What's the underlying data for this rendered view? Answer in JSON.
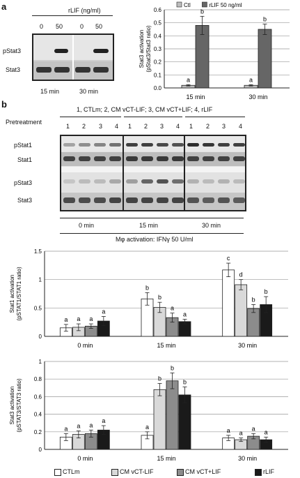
{
  "panel_a": {
    "letter": "a",
    "blot": {
      "header": "rLIF (ng/ml)",
      "dose_labels": [
        "0",
        "50",
        "0",
        "50"
      ],
      "row_labels": [
        "pStat3",
        "Stat3"
      ],
      "time_labels": [
        "15 min",
        "30 min"
      ]
    }
  },
  "panel_b": {
    "letter": "b",
    "legend_line": "1, CTLm; 2, CM vCT-LIF; 3, CM vCT+LIF; 4, rLIF",
    "pretreatment_label": "Pretreatment",
    "lane_numbers": [
      "1",
      "2",
      "3",
      "4",
      "1",
      "2",
      "3",
      "4",
      "1",
      "2",
      "3",
      "4"
    ],
    "row_labels": [
      "pStat1",
      "Stat1",
      "pStat3",
      "Stat3"
    ],
    "time_labels": [
      "0 min",
      "15 min",
      "30 min"
    ],
    "activation_label": "Mφ activation: IFNγ 50 U/ml"
  },
  "legend": {
    "items": [
      {
        "label": "CTLm",
        "color": "#ffffff"
      },
      {
        "label": "CM vCT-LIF",
        "color": "#d9d9d9"
      },
      {
        "label": "CM vCT+LIF",
        "color": "#8c8c8c"
      },
      {
        "label": "rLIF",
        "color": "#1a1a1a"
      }
    ]
  },
  "chart_data": [
    {
      "type": "bar",
      "ylabel": "Stat3 activation\n(pStat3/Stat3 ratio)",
      "ylim": [
        0,
        0.6
      ],
      "yticks": [
        "0.0",
        "0.1",
        "0.2",
        "0.3",
        "0.4",
        "0.5",
        "0.6"
      ],
      "categories": [
        "15 min",
        "30 min"
      ],
      "grid": true,
      "legend_position": "top",
      "series": [
        {
          "name": "Ctl",
          "color": "#bdbdbd",
          "values": [
            0.02,
            0.02
          ],
          "errors": [
            0.005,
            0.005
          ],
          "letters": [
            "a",
            "a"
          ]
        },
        {
          "name": "rLIF 50 ng/ml",
          "color": "#666666",
          "values": [
            0.48,
            0.45
          ],
          "errors": [
            0.07,
            0.04
          ],
          "letters": [
            "b",
            "b"
          ]
        }
      ]
    },
    {
      "type": "bar",
      "ylabel": "Stat1 activation\n(pSTAT1/STAT1 ratio)",
      "ylim": [
        0,
        1.5
      ],
      "yticks": [
        "0",
        "0.5",
        "1",
        "1.5"
      ],
      "categories": [
        "0 min",
        "15 min",
        "30 min"
      ],
      "grid": true,
      "series": [
        {
          "name": "CTLm",
          "color": "#ffffff",
          "values": [
            0.15,
            0.66,
            1.17
          ],
          "errors": [
            0.06,
            0.11,
            0.12
          ],
          "letters": [
            "a",
            "b",
            "c"
          ]
        },
        {
          "name": "CM vCT-LIF",
          "color": "#d9d9d9",
          "values": [
            0.16,
            0.51,
            0.91
          ],
          "errors": [
            0.06,
            0.09,
            0.09
          ],
          "letters": [
            "a",
            "b",
            "d"
          ]
        },
        {
          "name": "CM vCT+LIF",
          "color": "#8c8c8c",
          "values": [
            0.18,
            0.33,
            0.49
          ],
          "errors": [
            0.04,
            0.08,
            0.07
          ],
          "letters": [
            "a",
            "a",
            "b"
          ]
        },
        {
          "name": "rLIF",
          "color": "#1a1a1a",
          "values": [
            0.27,
            0.26,
            0.56
          ],
          "errors": [
            0.08,
            0.04,
            0.14
          ],
          "letters": [
            "a",
            "a",
            "b"
          ]
        }
      ]
    },
    {
      "type": "bar",
      "ylabel": "Stat3 activation\n(pSTAT3/STAT3 ratio)",
      "ylim": [
        0,
        1
      ],
      "yticks": [
        "0",
        "0.2",
        "0.4",
        "0.6",
        "0.8",
        "1"
      ],
      "categories": [
        "0 min",
        "15 min",
        "30 min"
      ],
      "grid": true,
      "series": [
        {
          "name": "CTLm",
          "color": "#ffffff",
          "values": [
            0.14,
            0.16,
            0.13
          ],
          "errors": [
            0.04,
            0.04,
            0.03
          ],
          "letters": [
            "a",
            "a",
            "a"
          ]
        },
        {
          "name": "CM vCT-LIF",
          "color": "#d9d9d9",
          "values": [
            0.17,
            0.68,
            0.11
          ],
          "errors": [
            0.04,
            0.07,
            0.02
          ],
          "letters": [
            "a",
            "b",
            "a"
          ]
        },
        {
          "name": "CM vCT+LIF",
          "color": "#8c8c8c",
          "values": [
            0.18,
            0.78,
            0.15
          ],
          "errors": [
            0.04,
            0.09,
            0.03
          ],
          "letters": [
            "a",
            "b",
            "a"
          ]
        },
        {
          "name": "rLIF",
          "color": "#1a1a1a",
          "values": [
            0.22,
            0.62,
            0.11
          ],
          "errors": [
            0.05,
            0.09,
            0.03
          ],
          "letters": [
            "a",
            "b",
            "a"
          ]
        }
      ]
    }
  ]
}
